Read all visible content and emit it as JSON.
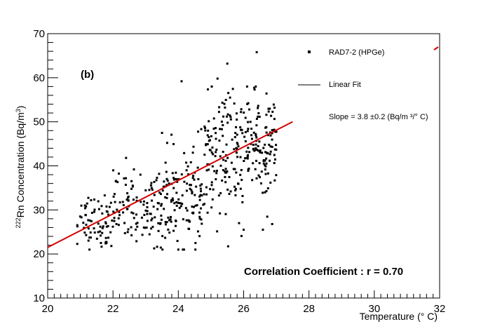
{
  "chart_data": {
    "type": "scatter",
    "panel_label": "(b)",
    "xlabel": "Temperature (° C)",
    "ylabel_prefix": "222",
    "ylabel_main": "Rn Concentration (Bq/m",
    "ylabel_sup": "3",
    "ylabel_suffix": ")",
    "xlim": [
      20,
      32
    ],
    "ylim": [
      10,
      70
    ],
    "x_ticks": [
      20,
      22,
      24,
      26,
      28,
      30,
      32
    ],
    "y_ticks": [
      10,
      20,
      30,
      40,
      50,
      60,
      70
    ],
    "series": [
      {
        "name": "RAD7-2 (HPGe)",
        "kind": "scatter",
        "color": "#000000",
        "clusters": [
          {
            "x_range": [
              20.9,
              22.0
            ],
            "y_mean": 27.5,
            "y_sd": 3.2,
            "count": 70
          },
          {
            "x_range": [
              22.0,
              23.5
            ],
            "y_mean": 30.5,
            "y_sd": 4.0,
            "count": 110
          },
          {
            "x_range": [
              23.5,
              24.8
            ],
            "y_mean": 32.5,
            "y_sd": 5.5,
            "count": 130
          },
          {
            "x_range": [
              24.8,
              26.0
            ],
            "y_mean": 42.0,
            "y_sd": 7.0,
            "count": 140
          },
          {
            "x_range": [
              26.0,
              27.0
            ],
            "y_mean": 44.0,
            "y_sd": 6.5,
            "count": 130
          }
        ],
        "outliers": [
          [
            25.5,
            63.2
          ],
          [
            25.2,
            59.8
          ],
          [
            26.4,
            65.8
          ],
          [
            24.1,
            59.2
          ],
          [
            24.0,
            21.0
          ],
          [
            26.0,
            25.5
          ],
          [
            22.4,
            41.8
          ]
        ]
      },
      {
        "name": "Linear Fit",
        "kind": "line",
        "color": "#d40000",
        "slope": 3.8,
        "intercept": -54.5,
        "x_range": [
          20.0,
          27.5
        ]
      }
    ],
    "legend": [
      {
        "label": "RAD7-2 (HPGe)",
        "symbol": "point"
      },
      {
        "label": "Linear Fit",
        "symbol": "line"
      },
      {
        "label": "Slope = 3.8 ±0.2 (Bq/m ³/° C)",
        "symbol": "none"
      }
    ],
    "annotation": "Correlation Coefficient : r = 0.70"
  }
}
